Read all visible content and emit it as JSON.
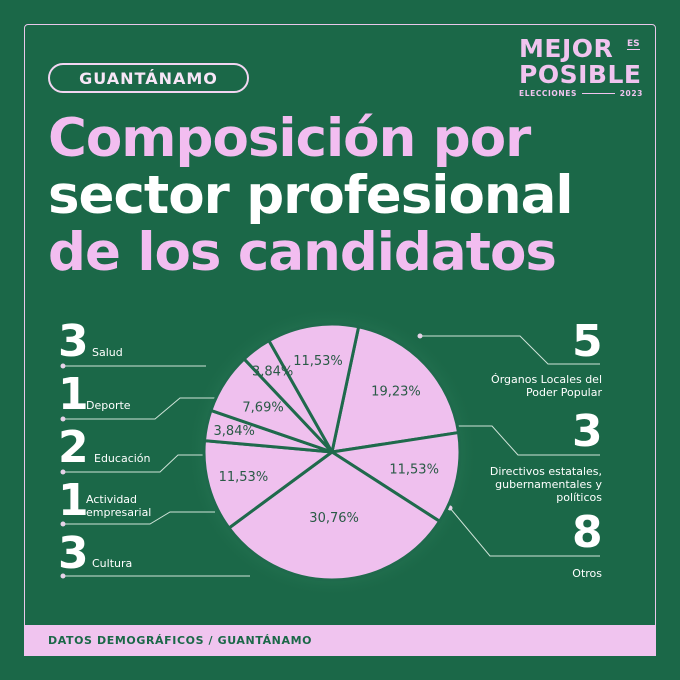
{
  "region": "GUANTÁNAMO",
  "brand": {
    "line1": "MEJOR",
    "es": "ES",
    "line2": "POSIBLE",
    "elecciones": "ELECCIONES",
    "year": "2023"
  },
  "title": {
    "line1": "Composición por",
    "line2": "sector profesional",
    "line3": "de los candidatos"
  },
  "footer": "DATOS DEMOGRÁFICOS / GUANTÁNAMO",
  "colors": {
    "background": "#1b6848",
    "pink": "#f0c4ef",
    "slice": "#efc0ee",
    "slice_border": "#1f6a4c",
    "label_text": "#2a5a46"
  },
  "chart_data": {
    "type": "pie",
    "title": "Composición por sector profesional de los candidatos",
    "unit": "candidatos",
    "slices": [
      {
        "name": "Órganos Locales del Poder Popular",
        "count": "5",
        "label": "19,23%",
        "value": 19.23
      },
      {
        "name": "Directivos estatales, gubernamentales y políticos",
        "count": "3",
        "label": "11,53%",
        "value": 11.53
      },
      {
        "name": "Otros",
        "count": "8",
        "label": "30,76%",
        "value": 30.76
      },
      {
        "name": "Cultura",
        "count": "3",
        "label": "11,53%",
        "value": 11.53
      },
      {
        "name": "Actividad empresarial",
        "count": "1",
        "label": "3,84%",
        "value": 3.84
      },
      {
        "name": "Educación",
        "count": "2",
        "label": "7,69%",
        "value": 7.69
      },
      {
        "name": "Deporte",
        "count": "1",
        "label": "3,84%",
        "value": 3.84
      },
      {
        "name": "Salud",
        "count": "3",
        "label": "11,53%",
        "value": 11.53
      }
    ]
  }
}
